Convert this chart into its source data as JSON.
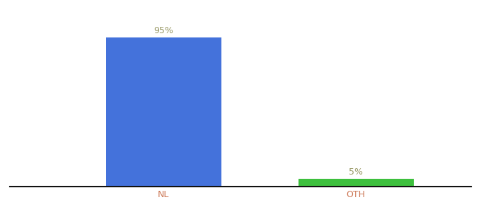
{
  "categories": [
    "NL",
    "OTH"
  ],
  "values": [
    95,
    5
  ],
  "bar_colors": [
    "#4472db",
    "#3dbf3d"
  ],
  "label_texts": [
    "95%",
    "5%"
  ],
  "ylim": [
    0,
    108
  ],
  "background_color": "#ffffff",
  "label_color": "#999966",
  "tick_color": "#cc7755",
  "bar_width": 0.6,
  "figsize": [
    6.8,
    3.0
  ],
  "dpi": 100,
  "spine_color": "#111111"
}
